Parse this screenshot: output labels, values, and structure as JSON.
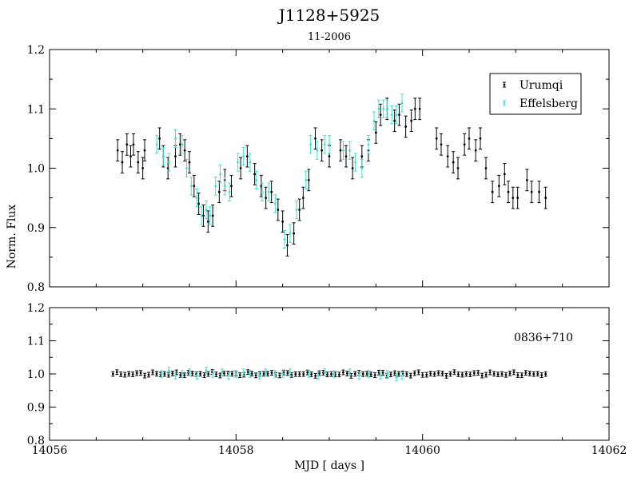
{
  "chart_data": [
    {
      "type": "scatter",
      "title": "J1128+5925",
      "subtitle": "11-2006",
      "xlabel": "",
      "ylabel": "Norm. Flux",
      "xlim": [
        14056,
        14062
      ],
      "ylim": [
        0.8,
        1.2
      ],
      "y_ticks": [
        "0.8",
        "0.9",
        "1.0",
        "1.1",
        "1.2"
      ],
      "legend": {
        "position": "top-right"
      },
      "colors": {
        "Urumqi": "#000000",
        "Effelsberg": "#40e0d0"
      },
      "series": [
        {
          "name": "Urumqi",
          "error": 0.018,
          "x": [
            14056.73,
            14056.78,
            14056.83,
            14056.87,
            14056.9,
            14056.95,
            14057.0,
            14057.02,
            14057.18,
            14057.22,
            14057.27,
            14057.35,
            14057.4,
            14057.45,
            14057.5,
            14057.55,
            14057.6,
            14057.65,
            14057.7,
            14057.75,
            14057.82,
            14057.88,
            14057.95,
            14058.05,
            14058.12,
            14058.2,
            14058.27,
            14058.32,
            14058.38,
            14058.45,
            14058.5,
            14058.55,
            14058.62,
            14058.68,
            14058.72,
            14058.78,
            14058.85,
            14058.92,
            14059.0,
            14059.12,
            14059.18,
            14059.25,
            14059.35,
            14059.42,
            14059.5,
            14059.55,
            14059.62,
            14059.7,
            14059.75,
            14059.82,
            14059.88,
            14059.92,
            14059.97,
            14060.15,
            14060.2,
            14060.27,
            14060.33,
            14060.38,
            14060.45,
            14060.5,
            14060.57,
            14060.62,
            14060.68,
            14060.75,
            14060.82,
            14060.88,
            14060.92,
            14060.97,
            14061.02,
            14061.12,
            14061.17,
            14061.25,
            14061.32
          ],
          "y": [
            1.03,
            1.01,
            1.04,
            1.02,
            1.04,
            1.01,
            1.0,
            1.03,
            1.05,
            1.02,
            1.0,
            1.02,
            1.04,
            1.03,
            1.01,
            0.97,
            0.94,
            0.92,
            0.91,
            0.92,
            0.96,
            0.98,
            0.97,
            1.0,
            1.02,
            0.99,
            0.97,
            0.95,
            0.96,
            0.93,
            0.91,
            0.87,
            0.89,
            0.93,
            0.95,
            0.98,
            1.05,
            1.03,
            1.02,
            1.03,
            1.02,
            1.0,
            1.02,
            1.03,
            1.06,
            1.09,
            1.1,
            1.08,
            1.09,
            1.07,
            1.08,
            1.1,
            1.1,
            1.05,
            1.04,
            1.02,
            1.01,
            1.0,
            1.04,
            1.05,
            1.03,
            1.05,
            1.0,
            0.96,
            0.97,
            0.99,
            0.96,
            0.95,
            0.95,
            0.98,
            0.96,
            0.96,
            0.95
          ]
        },
        {
          "name": "Effelsberg",
          "error": 0.015,
          "x": [
            14057.15,
            14057.22,
            14057.28,
            14057.35,
            14057.42,
            14057.47,
            14057.52,
            14057.58,
            14057.63,
            14057.68,
            14057.72,
            14057.78,
            14057.83,
            14057.88,
            14057.93,
            14058.02,
            14058.08,
            14058.15,
            14058.22,
            14058.28,
            14058.35,
            14058.42,
            14058.52,
            14058.58,
            14058.65,
            14058.75,
            14058.8,
            14058.87,
            14058.95,
            14059.0,
            14059.15,
            14059.22,
            14059.28,
            14059.35,
            14059.42,
            14059.48,
            14059.53,
            14059.58,
            14059.62,
            14059.67,
            14059.72,
            14059.78
          ],
          "y": [
            1.04,
            1.02,
            1.01,
            1.05,
            1.04,
            1.0,
            0.97,
            0.95,
            0.92,
            0.93,
            0.92,
            0.97,
            0.99,
            0.97,
            0.96,
            1.01,
            1.02,
            1.01,
            0.98,
            0.96,
            0.96,
            0.94,
            0.88,
            0.89,
            0.93,
            0.98,
            1.04,
            1.03,
            1.04,
            1.04,
            1.03,
            1.03,
            1.01,
            1.0,
            1.04,
            1.08,
            1.1,
            1.1,
            1.1,
            1.09,
            1.09,
            1.11
          ]
        }
      ]
    },
    {
      "type": "scatter",
      "title": "",
      "annotation": "0836+710",
      "xlabel": "MJD [ days ]",
      "ylabel": "",
      "xlim": [
        14056,
        14062
      ],
      "ylim": [
        0.8,
        1.2
      ],
      "x_ticks": [
        "14056",
        "14058",
        "14060",
        "14062"
      ],
      "y_ticks": [
        "0.8",
        "0.9",
        "1.0",
        "1.1",
        "1.2"
      ],
      "series": [
        {
          "name": "Urumqi",
          "error": 0.007,
          "x_start": 14056.68,
          "x_end": 14061.32,
          "count": 110,
          "mean": 1.0,
          "amplitude": 0.006
        },
        {
          "name": "Effelsberg",
          "error": 0.01,
          "x": [
            14057.2,
            14057.28,
            14057.35,
            14057.42,
            14057.5,
            14057.58,
            14057.68,
            14057.75,
            14057.85,
            14057.92,
            14058.0,
            14058.08,
            14058.15,
            14058.25,
            14058.32,
            14058.42,
            14058.5,
            14058.58,
            14058.78,
            14058.88,
            14058.95,
            14059.05,
            14059.22,
            14059.32,
            14059.42,
            14059.55,
            14059.62,
            14059.72,
            14059.78
          ],
          "y": [
            1.0,
            1.01,
            0.995,
            1.0,
            1.005,
            0.995,
            1.01,
            1.0,
            1.005,
            0.995,
            1.0,
            1.005,
            1.0,
            0.995,
            1.005,
            1.0,
            1.0,
            1.005,
            1.0,
            0.995,
            1.005,
            1.0,
            1.005,
            0.995,
            1.0,
            0.995,
            1.0,
            0.99,
            0.995
          ]
        }
      ]
    }
  ]
}
